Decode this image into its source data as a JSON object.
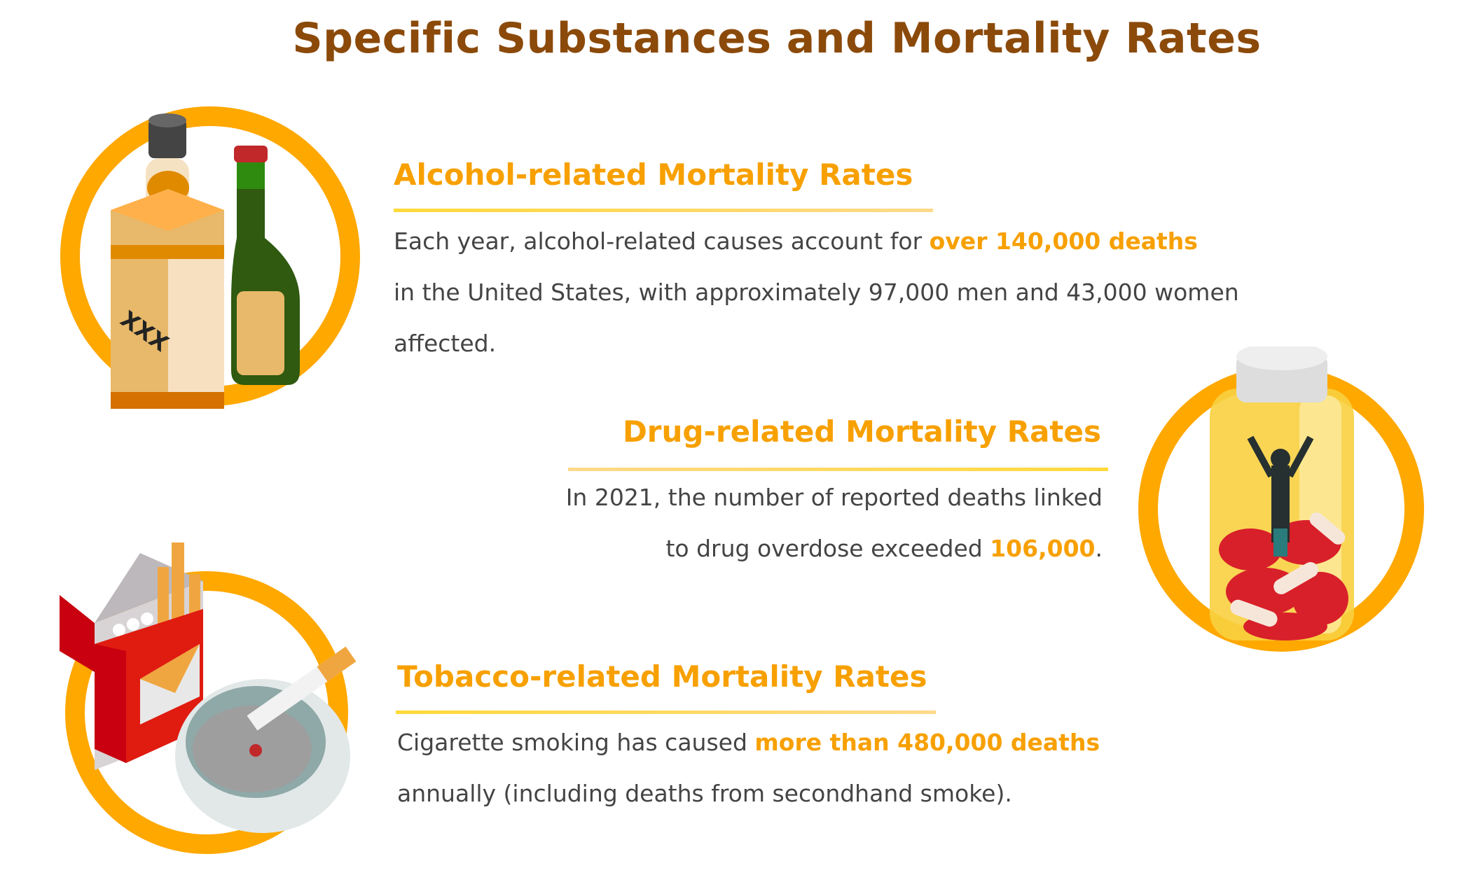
{
  "title": "Specific Substances and Mortality Rates",
  "colors": {
    "title": "#8B4A0A",
    "accent": "#F7A000",
    "ring": "#FFA800",
    "body": "#444444"
  },
  "sections": [
    {
      "heading": "Alcohol-related Mortality Rates",
      "icon": "alcohol-bottles-icon",
      "label_on_bottle": "XXX",
      "line1_pre": "Each year, alcohol-related causes account for ",
      "line1_highlight": "over 140,000 deaths",
      "line2": "in the United States, with approximately 97,000 men and 43,000 women",
      "line3": "affected."
    },
    {
      "heading": "Drug-related Mortality Rates",
      "icon": "pill-bottle-icon",
      "line1": "In 2021, the number of reported deaths linked",
      "line2_pre": "to drug overdose exceeded ",
      "line2_highlight": "106,000",
      "line2_post": "."
    },
    {
      "heading": "Tobacco-related Mortality Rates",
      "icon": "cigarettes-ashtray-icon",
      "line1_pre": "Cigarette smoking has caused ",
      "line1_highlight": "more than 480,000 deaths",
      "line2": "annually (including deaths from secondhand smoke)."
    }
  ]
}
